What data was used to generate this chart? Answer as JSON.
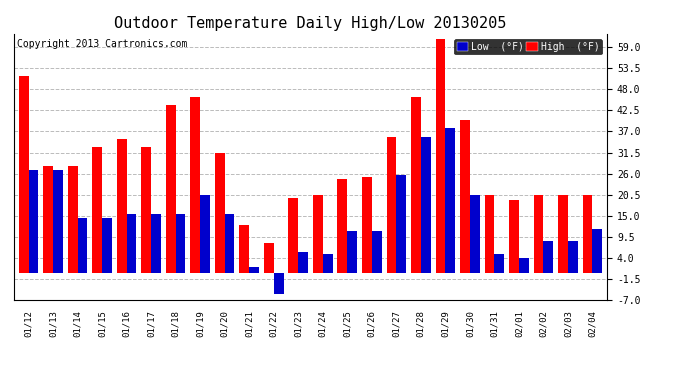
{
  "title": "Outdoor Temperature Daily High/Low 20130205",
  "copyright": "Copyright 2013 Cartronics.com",
  "legend_low": "Low  (°F)",
  "legend_high": "High  (°F)",
  "dates": [
    "01/12",
    "01/13",
    "01/14",
    "01/15",
    "01/16",
    "01/17",
    "01/18",
    "01/19",
    "01/20",
    "01/21",
    "01/22",
    "01/23",
    "01/24",
    "01/25",
    "01/26",
    "01/27",
    "01/28",
    "01/29",
    "01/30",
    "01/31",
    "02/01",
    "02/02",
    "02/03",
    "02/04"
  ],
  "high": [
    51.5,
    28.0,
    28.0,
    33.0,
    35.0,
    33.0,
    44.0,
    46.0,
    31.5,
    12.5,
    8.0,
    19.5,
    20.5,
    24.5,
    25.0,
    35.5,
    46.0,
    61.0,
    40.0,
    20.5,
    19.0,
    20.5,
    20.5,
    20.5
  ],
  "low": [
    27.0,
    27.0,
    14.5,
    14.5,
    15.5,
    15.5,
    15.5,
    20.5,
    15.5,
    1.5,
    -5.5,
    5.5,
    5.0,
    11.0,
    11.0,
    25.5,
    35.5,
    38.0,
    20.5,
    5.0,
    4.0,
    8.5,
    8.5,
    11.5
  ],
  "ylim": [
    -7.0,
    62.5
  ],
  "yticks": [
    -7.0,
    -1.5,
    4.0,
    9.5,
    15.0,
    20.5,
    26.0,
    31.5,
    37.0,
    42.5,
    48.0,
    53.5,
    59.0
  ],
  "color_high": "#ff0000",
  "color_low": "#0000cc",
  "background_color": "#ffffff",
  "grid_color": "#bbbbbb",
  "title_fontsize": 11,
  "copyright_fontsize": 7,
  "bar_width": 0.4
}
